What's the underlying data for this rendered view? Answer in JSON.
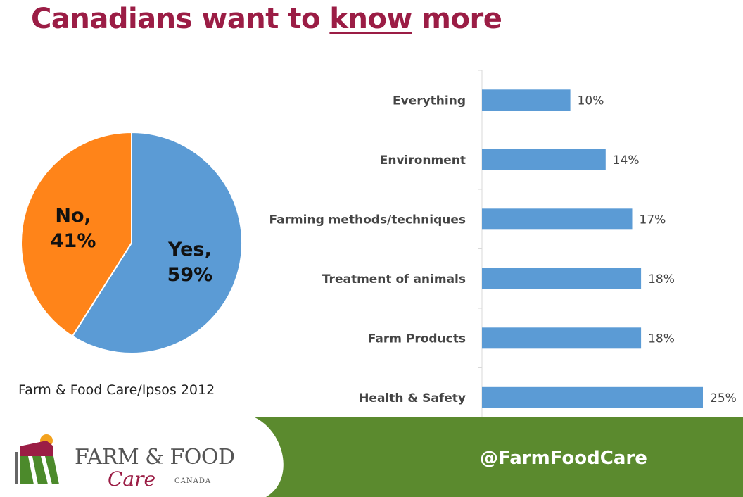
{
  "header": {
    "title_before": "Canadians want to ",
    "title_underlined": "know",
    "title_after": " more"
  },
  "source": "Farm & Food Care/Ipsos 2012",
  "footer": {
    "twitter": "@FarmFoodCare",
    "logo": {
      "line1": "FARM & FOOD",
      "line2": "Care",
      "line3": "CANADA"
    },
    "colors": {
      "green": "#5b8a2e",
      "logo_red": "#9b1d45",
      "logo_green": "#4c8a2b",
      "logo_sun": "#f3a21e"
    }
  },
  "chart_data": [
    {
      "type": "pie",
      "slices": [
        {
          "label": "Yes,",
          "value": 59,
          "value_text": "59%",
          "color": "#5b9bd5"
        },
        {
          "label": "No,",
          "value": 41,
          "value_text": "41%",
          "color": "#ff8419"
        }
      ]
    },
    {
      "type": "bar",
      "orientation": "horizontal",
      "categories": [
        "Everything",
        "Environment",
        "Farming methods/techniques",
        "Treatment of animals",
        "Farm Products",
        "Health & Safety"
      ],
      "values": [
        10,
        14,
        17,
        18,
        18,
        25
      ],
      "value_labels": [
        "10%",
        "14%",
        "17%",
        "18%",
        "18%",
        "25%"
      ],
      "color": "#5b9bd5",
      "xlim": [
        0,
        25
      ]
    }
  ]
}
